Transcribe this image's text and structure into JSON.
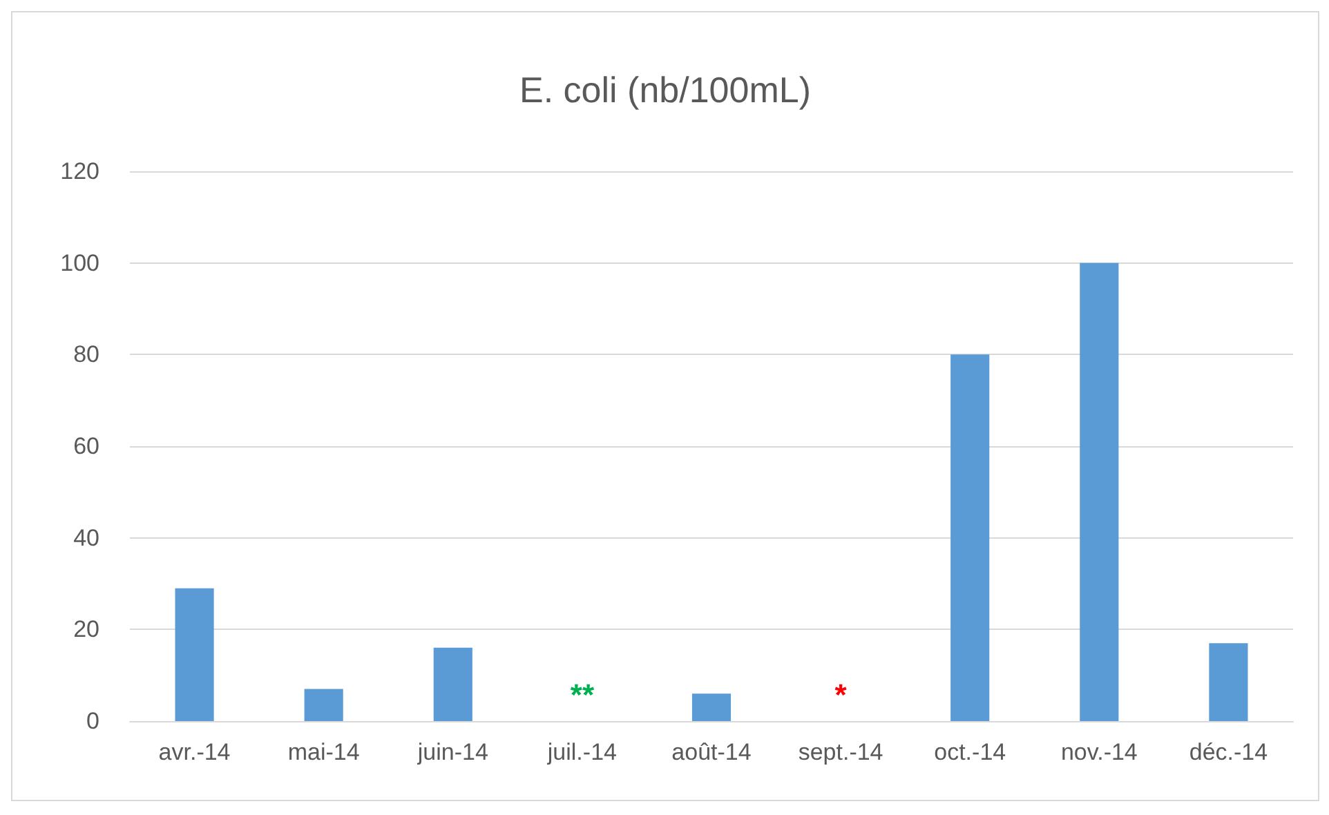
{
  "chart_data": {
    "type": "bar",
    "title": "E. coli (nb/100mL)",
    "categories": [
      "avr.-14",
      "mai-14",
      "juin-14",
      "juil.-14",
      "août-14",
      "sept.-14",
      "oct.-14",
      "nov.-14",
      "déc.-14"
    ],
    "values": [
      29,
      7,
      16,
      null,
      6,
      null,
      80,
      100,
      17
    ],
    "color": "#5b9bd5",
    "ylim": [
      0,
      120
    ],
    "yticks": [
      0,
      20,
      40,
      60,
      80,
      100,
      120
    ],
    "grid": "y",
    "annotations": [
      "**",
      "*"
    ]
  }
}
